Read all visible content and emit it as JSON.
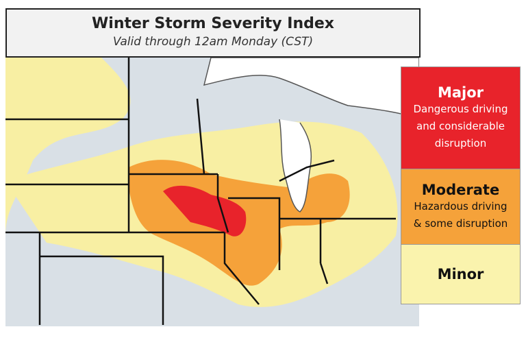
{
  "header": {
    "title": "Winter Storm Severity Index",
    "subtitle": "Valid through 12am Monday (CST)"
  },
  "legend": [
    {
      "label": "Major",
      "description": "Dangerous driving and considerable disruption"
    },
    {
      "label": "Moderate",
      "description": "Hazardous driving & some disruption"
    },
    {
      "label": "Minor"
    }
  ]
}
